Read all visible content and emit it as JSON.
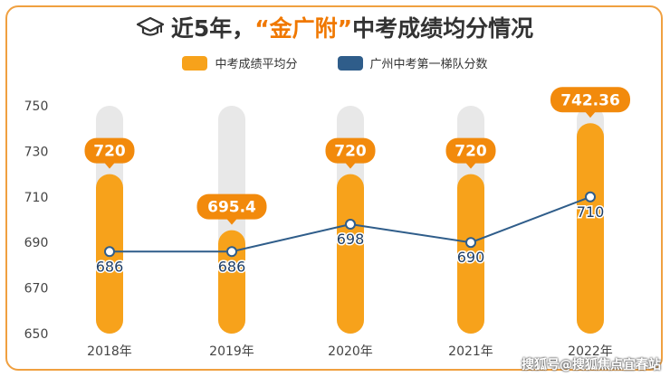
{
  "title": {
    "prefix": "近5年，",
    "highlight": "“金广附”",
    "suffix": "中考成绩均分情况"
  },
  "watermark": "搜狐号@搜狐焦点宜春站",
  "colors": {
    "bar": "#f7a21b",
    "bar_label": "#f28a0c",
    "line": "#2f5d8a",
    "track": "#e8e8e8",
    "accent": "#f07800"
  },
  "chart_data": {
    "type": "bar",
    "categories": [
      "2018年",
      "2019年",
      "2020年",
      "2021年",
      "2022年"
    ],
    "series": [
      {
        "name": "中考成绩平均分",
        "type": "bar",
        "values": [
          720,
          695.4,
          720,
          720,
          742.36
        ],
        "labels": [
          "720",
          "695.4",
          "720",
          "720",
          "742.36"
        ]
      },
      {
        "name": "广州中考第一梯队分数",
        "type": "line",
        "values": [
          686,
          686,
          698,
          690,
          710
        ],
        "labels": [
          "686",
          "686",
          "698",
          "690",
          "710"
        ]
      }
    ],
    "yticks": [
      "750",
      "730",
      "710",
      "690",
      "670",
      "650"
    ],
    "ylim": [
      650,
      750
    ],
    "legend": "top-center",
    "grid": false
  }
}
